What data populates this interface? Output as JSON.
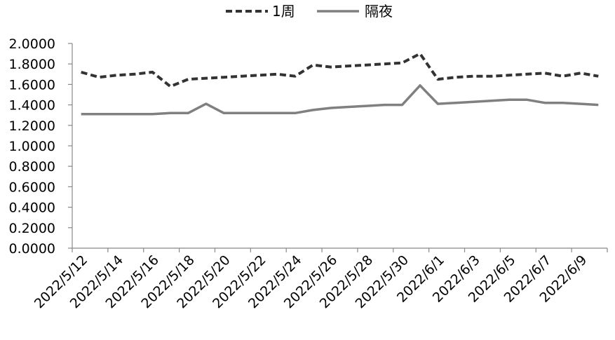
{
  "chart_data": {
    "type": "line",
    "title": "",
    "xlabel": "",
    "ylabel": "",
    "ylim": [
      0,
      2.0
    ],
    "yticks": [
      "0.0000",
      "0.2000",
      "0.4000",
      "0.6000",
      "0.8000",
      "1.0000",
      "1.2000",
      "1.4000",
      "1.6000",
      "1.8000",
      "2.0000"
    ],
    "legend_position": "top-center",
    "grid": false,
    "x": [
      "2022/5/12",
      "2022/5/13",
      "2022/5/14",
      "2022/5/15",
      "2022/5/16",
      "2022/5/17",
      "2022/5/18",
      "2022/5/19",
      "2022/5/20",
      "2022/5/21",
      "2022/5/22",
      "2022/5/23",
      "2022/5/24",
      "2022/5/25",
      "2022/5/26",
      "2022/5/27",
      "2022/5/28",
      "2022/5/29",
      "2022/5/30",
      "2022/5/31",
      "2022/6/1",
      "2022/6/2",
      "2022/6/3",
      "2022/6/4",
      "2022/6/5",
      "2022/6/6",
      "2022/6/7",
      "2022/6/8",
      "2022/6/9",
      "2022/6/10"
    ],
    "xtick_labels": [
      "2022/5/12",
      "2022/5/14",
      "2022/5/16",
      "2022/5/18",
      "2022/5/20",
      "2022/5/22",
      "2022/5/24",
      "2022/5/26",
      "2022/5/28",
      "2022/5/30",
      "2022/6/1",
      "2022/6/3",
      "2022/6/5",
      "2022/6/7",
      "2022/6/9"
    ],
    "series": [
      {
        "name": "1周",
        "style": "dashed",
        "color": "#333333",
        "values": [
          1.72,
          1.67,
          1.69,
          1.7,
          1.72,
          1.58,
          1.65,
          1.66,
          1.67,
          1.68,
          1.69,
          1.7,
          1.68,
          1.79,
          1.77,
          1.78,
          1.79,
          1.8,
          1.81,
          1.9,
          1.65,
          1.67,
          1.68,
          1.68,
          1.69,
          1.7,
          1.71,
          1.68,
          1.71,
          1.68
        ]
      },
      {
        "name": "隔夜",
        "style": "solid",
        "color": "#808080",
        "values": [
          1.31,
          1.31,
          1.31,
          1.31,
          1.31,
          1.32,
          1.32,
          1.41,
          1.32,
          1.32,
          1.32,
          1.32,
          1.32,
          1.35,
          1.37,
          1.38,
          1.39,
          1.4,
          1.4,
          1.59,
          1.41,
          1.42,
          1.43,
          1.44,
          1.45,
          1.45,
          1.42,
          1.42,
          1.41,
          1.4
        ]
      }
    ]
  }
}
